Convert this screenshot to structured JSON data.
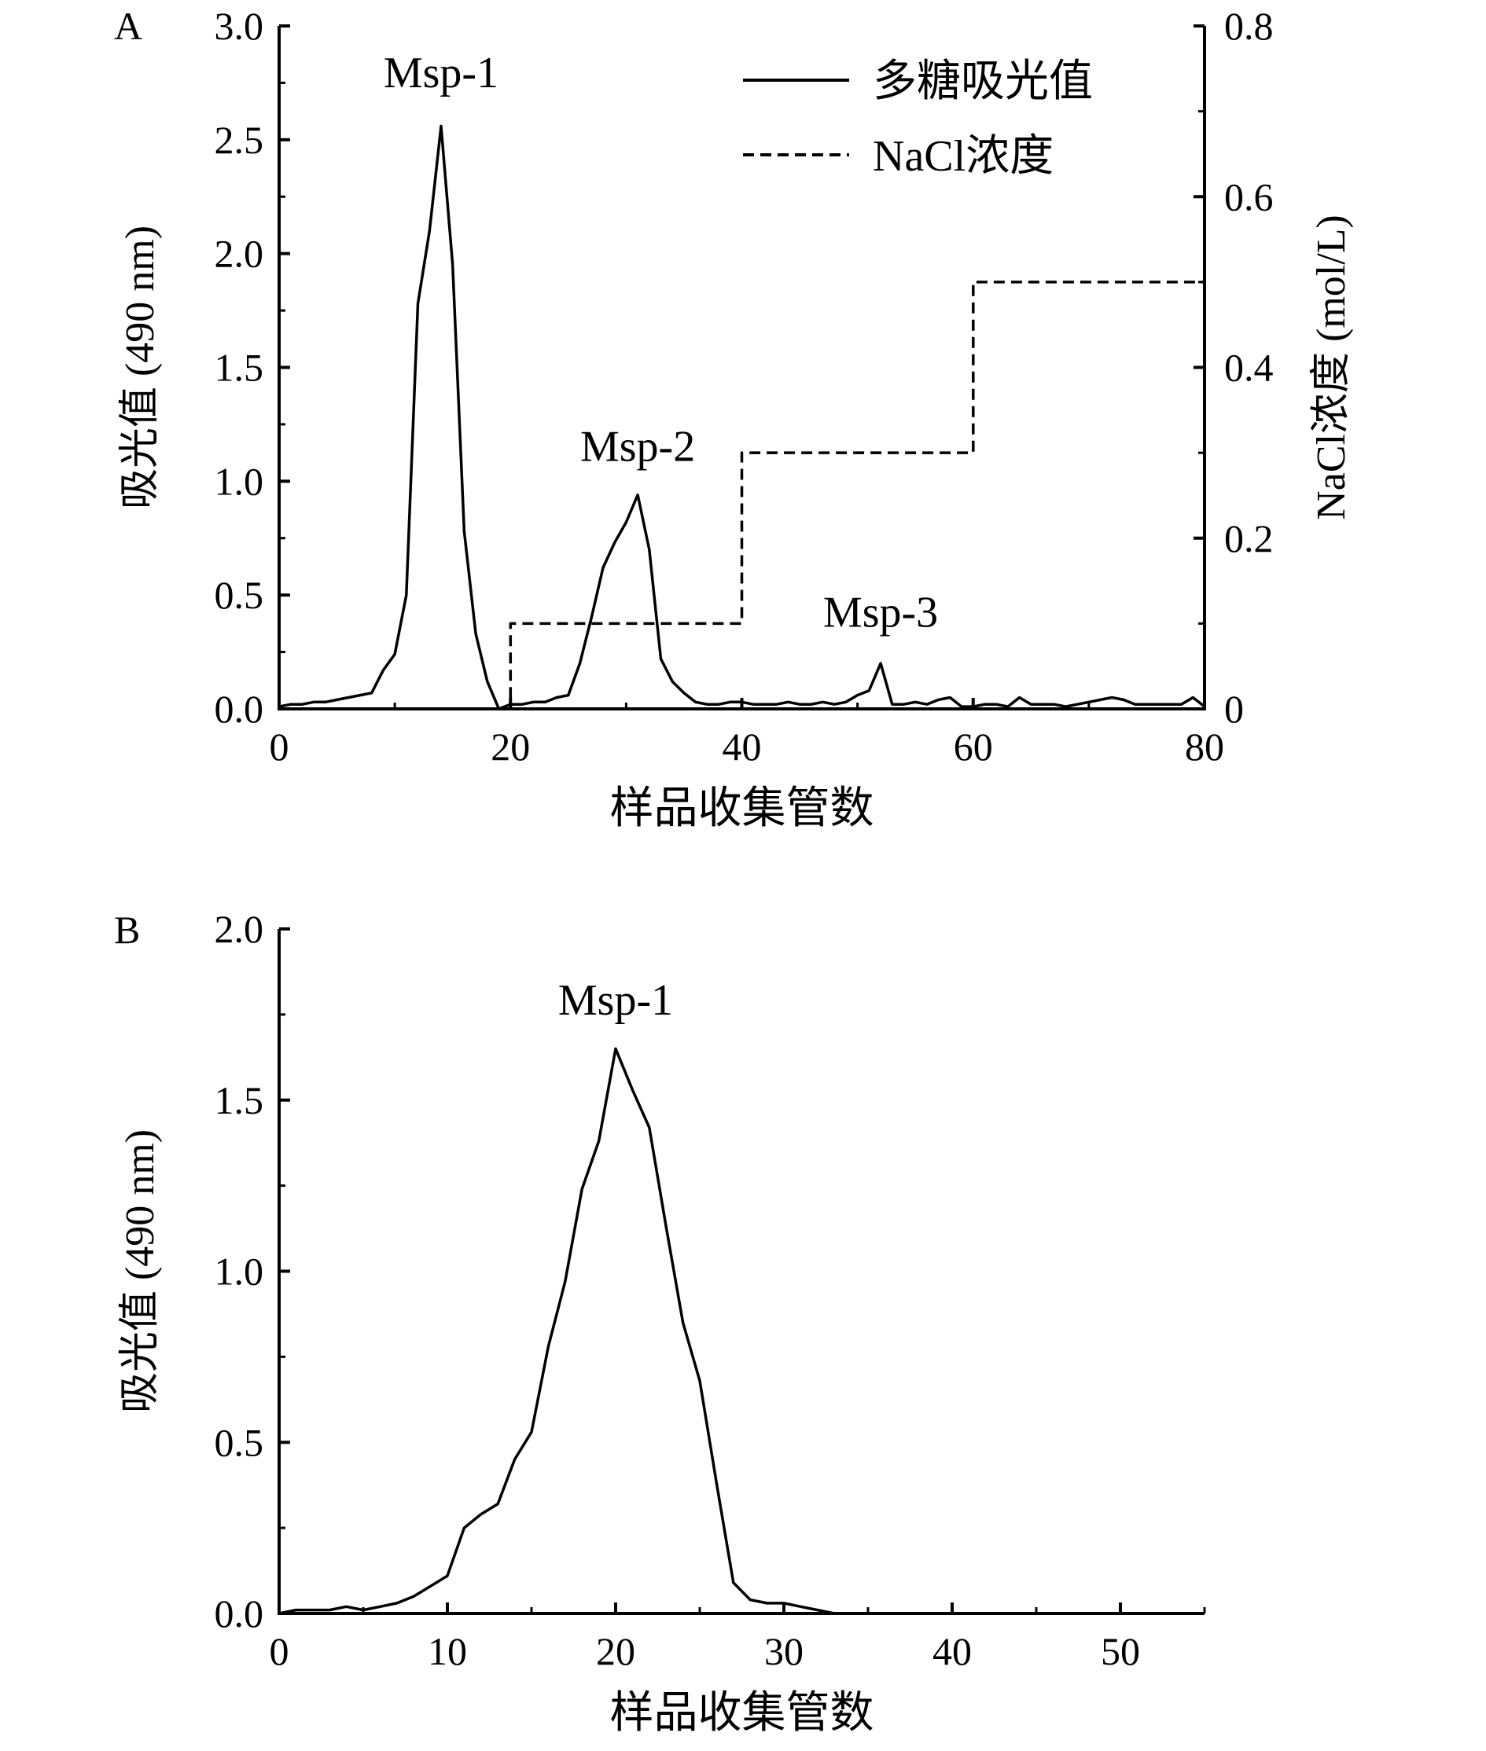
{
  "chart_data": [
    {
      "panel": "A",
      "type": "line",
      "xlabel": "样品收集管数",
      "ylabel": "吸光值 (490 nm)",
      "y2label": "NaCl浓度 (mol/L)",
      "xlim": [
        0,
        80
      ],
      "ylim": [
        0,
        3.0
      ],
      "y2lim": [
        0,
        0.8
      ],
      "xticks": [
        "0",
        "20",
        "40",
        "60",
        "80"
      ],
      "yticks": [
        "0.0",
        "0.5",
        "1.0",
        "1.5",
        "2.0",
        "2.5",
        "3.0"
      ],
      "y2ticks": [
        "0",
        "0.2",
        "0.4",
        "0.6",
        "0.8"
      ],
      "legend": {
        "position": "top-right",
        "entries": [
          "多糖吸光值",
          "NaCl浓度"
        ]
      },
      "annotations": [
        "Msp-1",
        "Msp-2",
        "Msp-3"
      ],
      "series": [
        {
          "name": "多糖吸光值",
          "style": "solid",
          "axis": "left",
          "x": [
            0,
            1,
            2,
            3,
            4,
            5,
            6,
            7,
            8,
            9,
            10,
            11,
            12,
            13,
            14,
            15,
            16,
            17,
            18,
            19,
            20,
            21,
            22,
            23,
            24,
            25,
            26,
            27,
            28,
            29,
            30,
            31,
            32,
            33,
            34,
            35,
            36,
            37,
            38,
            39,
            40,
            41,
            42,
            43,
            44,
            45,
            46,
            47,
            48,
            49,
            50,
            51,
            52,
            53,
            54,
            55,
            56,
            57,
            58,
            59,
            60,
            61,
            62,
            63,
            64,
            65,
            66,
            67,
            68,
            69,
            70,
            71,
            72,
            73,
            74,
            75,
            76,
            77,
            78,
            79,
            80
          ],
          "y": [
            0.01,
            0.02,
            0.02,
            0.03,
            0.03,
            0.04,
            0.05,
            0.06,
            0.07,
            0.17,
            0.24,
            0.5,
            1.78,
            2.1,
            2.56,
            1.95,
            0.78,
            0.33,
            0.12,
            0.0,
            0.02,
            0.02,
            0.03,
            0.03,
            0.05,
            0.06,
            0.2,
            0.4,
            0.62,
            0.73,
            0.82,
            0.94,
            0.7,
            0.22,
            0.12,
            0.07,
            0.03,
            0.02,
            0.02,
            0.03,
            0.03,
            0.02,
            0.02,
            0.02,
            0.03,
            0.02,
            0.02,
            0.03,
            0.02,
            0.03,
            0.06,
            0.08,
            0.2,
            0.02,
            0.02,
            0.03,
            0.02,
            0.04,
            0.05,
            0.01,
            0.01,
            0.02,
            0.02,
            0.01,
            0.05,
            0.02,
            0.02,
            0.02,
            0.01,
            0.02,
            0.03,
            0.04,
            0.05,
            0.04,
            0.02,
            0.02,
            0.02,
            0.02,
            0.02,
            0.05,
            0.01
          ]
        },
        {
          "name": "NaCl浓度",
          "style": "dashed",
          "axis": "right",
          "x": [
            0,
            20,
            20,
            40,
            40,
            60,
            60,
            80
          ],
          "y": [
            0,
            0,
            0.1,
            0.1,
            0.3,
            0.3,
            0.5,
            0.5
          ]
        }
      ]
    },
    {
      "panel": "B",
      "type": "line",
      "xlabel": "样品收集管数",
      "ylabel": "吸光值 (490 nm)",
      "xlim": [
        0,
        55
      ],
      "ylim": [
        0,
        2.0
      ],
      "xticks": [
        "0",
        "10",
        "20",
        "30",
        "40",
        "50"
      ],
      "yticks": [
        "0.0",
        "0.5",
        "1.0",
        "1.5",
        "2.0"
      ],
      "annotations": [
        "Msp-1"
      ],
      "series": [
        {
          "name": "吸光值",
          "style": "solid",
          "x": [
            0,
            1,
            2,
            3,
            4,
            5,
            6,
            7,
            8,
            9,
            10,
            11,
            12,
            13,
            14,
            15,
            16,
            17,
            18,
            19,
            20,
            21,
            22,
            23,
            24,
            25,
            26,
            27,
            28,
            29,
            30,
            31,
            32,
            33
          ],
          "y": [
            0.0,
            0.01,
            0.01,
            0.01,
            0.02,
            0.01,
            0.02,
            0.03,
            0.05,
            0.08,
            0.11,
            0.25,
            0.29,
            0.32,
            0.45,
            0.53,
            0.78,
            0.97,
            1.24,
            1.38,
            1.65,
            1.53,
            1.42,
            1.13,
            0.85,
            0.68,
            0.38,
            0.09,
            0.04,
            0.03,
            0.03,
            0.02,
            0.01,
            0.0
          ]
        }
      ]
    }
  ]
}
